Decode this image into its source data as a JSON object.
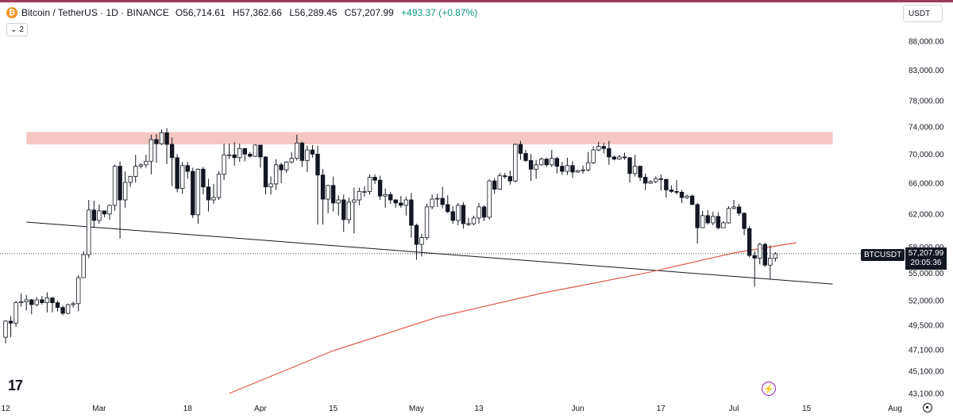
{
  "header": {
    "symbol_title": "Bitcoin / TetherUS · 1D · BINANCE",
    "open_label": "O",
    "open": "56,714.61",
    "high_label": "H",
    "high": "57,362.66",
    "low_label": "L",
    "low": "56,289.45",
    "close_label": "C",
    "close": "57,207.99",
    "change": "+493.37 (+0.87%)",
    "collapse_count": "2"
  },
  "currency_selector": "USDT",
  "price_tag": {
    "symbol": "BTCUSDT",
    "price": "57,207.99",
    "countdown": "20:05:36"
  },
  "icons": [
    "bitcoin-icon",
    "chevron-down-icon",
    "tradingview-logo-icon",
    "flash-icon",
    "settings-icon"
  ],
  "colors": {
    "up": "#089981",
    "down": "#131722",
    "candle_up_body": "#ffffff",
    "resistance_zone": "#f4c7c3",
    "moving_average": "#e05a4f",
    "trendline": "#131722",
    "accent": "#9c27b0"
  },
  "chart_data": {
    "type": "candlestick",
    "y_axis_labels": [
      "88,000.00",
      "83,000.00",
      "78,000.00",
      "74,000.00",
      "70,000.00",
      "66,000.00",
      "62,000.00",
      "58,000.00",
      "55,000.00",
      "52,000.00",
      "49,500.00",
      "47,100.00",
      "45,100.00",
      "43,100.00"
    ],
    "x_axis_labels": [
      "12",
      "Mar",
      "18",
      "Apr",
      "15",
      "May",
      "13",
      "Jun",
      "17",
      "Jul",
      "15",
      "Aug"
    ],
    "scale": "log",
    "ylim": [
      42800,
      90000
    ],
    "xlim": [
      "2024-02-11",
      "2024-08-02"
    ],
    "ohlc": [
      [
        "2024-02-12",
        48300,
        50000,
        47700,
        49900
      ],
      [
        "2024-02-13",
        49900,
        50400,
        48300,
        49700
      ],
      [
        "2024-02-14",
        49700,
        52000,
        49300,
        51800
      ],
      [
        "2024-02-15",
        51800,
        52800,
        51400,
        51900
      ],
      [
        "2024-02-16",
        51900,
        52600,
        51000,
        52100
      ],
      [
        "2024-02-17",
        52100,
        52200,
        50600,
        51600
      ],
      [
        "2024-02-18",
        51600,
        52400,
        51400,
        52100
      ],
      [
        "2024-02-19",
        52100,
        52500,
        51600,
        51800
      ],
      [
        "2024-02-20",
        51800,
        52900,
        50800,
        52300
      ],
      [
        "2024-02-21",
        52300,
        52400,
        50800,
        51800
      ],
      [
        "2024-02-22",
        51800,
        52000,
        50900,
        51300
      ],
      [
        "2024-02-23",
        51300,
        51500,
        50500,
        50700
      ],
      [
        "2024-02-24",
        50700,
        51700,
        50600,
        51600
      ],
      [
        "2024-02-25",
        51600,
        51900,
        51300,
        51700
      ],
      [
        "2024-02-26",
        51700,
        54800,
        50900,
        54500
      ],
      [
        "2024-02-27",
        54500,
        57500,
        54500,
        57100
      ],
      [
        "2024-02-28",
        57100,
        63800,
        56700,
        62500
      ],
      [
        "2024-02-29",
        62500,
        63700,
        60400,
        61200
      ],
      [
        "2024-03-01",
        61200,
        63200,
        60800,
        62400
      ],
      [
        "2024-03-02",
        62400,
        62400,
        61600,
        62000
      ],
      [
        "2024-03-03",
        62000,
        63200,
        61300,
        63100
      ],
      [
        "2024-03-04",
        63100,
        68500,
        62400,
        68300
      ],
      [
        "2024-03-05",
        68300,
        69000,
        59000,
        63800
      ],
      [
        "2024-03-06",
        63800,
        67600,
        62800,
        66100
      ],
      [
        "2024-03-07",
        66100,
        67000,
        65500,
        66900
      ],
      [
        "2024-03-08",
        66900,
        69900,
        66100,
        68300
      ],
      [
        "2024-03-09",
        68300,
        68700,
        68000,
        68500
      ],
      [
        "2024-03-10",
        68500,
        69900,
        68100,
        69000
      ],
      [
        "2024-03-11",
        69000,
        72800,
        67200,
        72100
      ],
      [
        "2024-03-12",
        72100,
        72900,
        68800,
        71500
      ],
      [
        "2024-03-13",
        71500,
        73600,
        71300,
        73100
      ],
      [
        "2024-03-14",
        73100,
        73800,
        68600,
        71400
      ],
      [
        "2024-03-15",
        71400,
        72400,
        65600,
        69500
      ],
      [
        "2024-03-16",
        69500,
        70000,
        64800,
        65300
      ],
      [
        "2024-03-17",
        65300,
        68900,
        64600,
        68400
      ],
      [
        "2024-03-18",
        68400,
        68900,
        66600,
        67600
      ],
      [
        "2024-03-19",
        67600,
        68100,
        61500,
        61900
      ],
      [
        "2024-03-20",
        61900,
        68000,
        60800,
        67900
      ],
      [
        "2024-03-21",
        67900,
        68200,
        64500,
        65500
      ],
      [
        "2024-03-22",
        65500,
        66600,
        62300,
        63800
      ],
      [
        "2024-03-23",
        63800,
        65900,
        63300,
        64100
      ],
      [
        "2024-03-24",
        64100,
        67600,
        63800,
        67200
      ],
      [
        "2024-03-25",
        67200,
        71500,
        66400,
        69900
      ],
      [
        "2024-03-26",
        69900,
        71500,
        69300,
        69900
      ],
      [
        "2024-03-27",
        69900,
        71700,
        68400,
        69500
      ],
      [
        "2024-03-28",
        69500,
        71500,
        68900,
        70800
      ],
      [
        "2024-03-29",
        70800,
        70900,
        69000,
        70000
      ],
      [
        "2024-03-30",
        70000,
        70300,
        69500,
        69700
      ],
      [
        "2024-03-31",
        69700,
        71400,
        69600,
        71300
      ],
      [
        "2024-04-01",
        71300,
        71300,
        68100,
        69600
      ],
      [
        "2024-04-02",
        69600,
        69700,
        64500,
        65500
      ],
      [
        "2024-04-03",
        65500,
        66900,
        64500,
        65900
      ],
      [
        "2024-04-04",
        65900,
        69300,
        65100,
        68500
      ],
      [
        "2024-04-05",
        68500,
        68800,
        66000,
        67800
      ],
      [
        "2024-04-06",
        67800,
        69000,
        67400,
        68900
      ],
      [
        "2024-04-07",
        68900,
        70300,
        68700,
        69400
      ],
      [
        "2024-04-08",
        69400,
        72800,
        69100,
        71600
      ],
      [
        "2024-04-09",
        71600,
        71800,
        68200,
        69100
      ],
      [
        "2024-04-10",
        69100,
        71200,
        67500,
        70600
      ],
      [
        "2024-04-11",
        70600,
        71300,
        69500,
        70000
      ],
      [
        "2024-04-12",
        70000,
        71200,
        60700,
        67100
      ],
      [
        "2024-04-13",
        67100,
        67900,
        60700,
        63900
      ],
      [
        "2024-04-14",
        63900,
        65800,
        62100,
        65700
      ],
      [
        "2024-04-15",
        65700,
        66900,
        62300,
        63400
      ],
      [
        "2024-04-16",
        63400,
        64400,
        61800,
        63800
      ],
      [
        "2024-04-17",
        63800,
        64500,
        59800,
        61300
      ],
      [
        "2024-04-18",
        61300,
        64100,
        60800,
        63500
      ],
      [
        "2024-04-19",
        63500,
        65400,
        59600,
        63800
      ],
      [
        "2024-04-20",
        63800,
        65400,
        63100,
        64900
      ],
      [
        "2024-04-21",
        64900,
        65600,
        64200,
        64900
      ],
      [
        "2024-04-22",
        64900,
        67200,
        64500,
        66800
      ],
      [
        "2024-04-23",
        66800,
        67200,
        65900,
        66400
      ],
      [
        "2024-04-24",
        66400,
        67000,
        63800,
        64300
      ],
      [
        "2024-04-25",
        64300,
        65300,
        62800,
        64500
      ],
      [
        "2024-04-26",
        64500,
        64800,
        63300,
        63800
      ],
      [
        "2024-04-27",
        63800,
        63900,
        62800,
        63400
      ],
      [
        "2024-04-28",
        63400,
        64300,
        62800,
        63100
      ],
      [
        "2024-04-29",
        63100,
        64200,
        61800,
        63800
      ],
      [
        "2024-04-30",
        63800,
        64700,
        59100,
        60600
      ],
      [
        "2024-05-01",
        60600,
        60800,
        56500,
        58300
      ],
      [
        "2024-05-02",
        58300,
        59600,
        56900,
        59100
      ],
      [
        "2024-05-03",
        59100,
        63300,
        58800,
        62900
      ],
      [
        "2024-05-04",
        62900,
        64500,
        62600,
        63900
      ],
      [
        "2024-05-05",
        63900,
        64600,
        62900,
        64000
      ],
      [
        "2024-05-06",
        64000,
        65500,
        62700,
        63200
      ],
      [
        "2024-05-07",
        63200,
        64400,
        62100,
        62300
      ],
      [
        "2024-05-08",
        62300,
        63000,
        60800,
        61200
      ],
      [
        "2024-05-09",
        61200,
        63400,
        60600,
        63100
      ],
      [
        "2024-05-10",
        63100,
        63500,
        60200,
        60800
      ],
      [
        "2024-05-11",
        60800,
        61500,
        60500,
        60800
      ],
      [
        "2024-05-12",
        60800,
        61800,
        60600,
        61500
      ],
      [
        "2024-05-13",
        61500,
        63400,
        60800,
        62900
      ],
      [
        "2024-05-14",
        62900,
        63100,
        61100,
        61600
      ],
      [
        "2024-05-15",
        61600,
        66500,
        61300,
        66300
      ],
      [
        "2024-05-16",
        66300,
        66700,
        64600,
        65200
      ],
      [
        "2024-05-17",
        65200,
        67400,
        65100,
        67000
      ],
      [
        "2024-05-18",
        67000,
        67400,
        66600,
        66900
      ],
      [
        "2024-05-19",
        66900,
        67700,
        65800,
        66300
      ],
      [
        "2024-05-20",
        66300,
        71500,
        66100,
        71400
      ],
      [
        "2024-05-21",
        71400,
        71900,
        69200,
        70100
      ],
      [
        "2024-05-22",
        70100,
        70600,
        68900,
        69100
      ],
      [
        "2024-05-23",
        69100,
        70000,
        66300,
        67900
      ],
      [
        "2024-05-24",
        67900,
        69200,
        66600,
        68500
      ],
      [
        "2024-05-25",
        68500,
        69500,
        68400,
        69300
      ],
      [
        "2024-05-26",
        69300,
        69500,
        68200,
        68500
      ],
      [
        "2024-05-27",
        68500,
        70600,
        68200,
        69400
      ],
      [
        "2024-05-28",
        69400,
        69600,
        67300,
        68300
      ],
      [
        "2024-05-29",
        68300,
        68900,
        67100,
        67600
      ],
      [
        "2024-05-30",
        67600,
        69500,
        67100,
        68400
      ],
      [
        "2024-05-31",
        68400,
        69000,
        66700,
        67500
      ],
      [
        "2024-06-01",
        67500,
        67800,
        67400,
        67700
      ],
      [
        "2024-06-02",
        67700,
        68400,
        67300,
        67800
      ],
      [
        "2024-06-03",
        67800,
        70300,
        67600,
        68800
      ],
      [
        "2024-06-04",
        68800,
        71100,
        68600,
        70600
      ],
      [
        "2024-06-05",
        70600,
        71800,
        70400,
        71100
      ],
      [
        "2024-06-06",
        71100,
        71600,
        70100,
        70800
      ],
      [
        "2024-06-07",
        70800,
        71900,
        68500,
        69600
      ],
      [
        "2024-06-08",
        69600,
        69800,
        69100,
        69300
      ],
      [
        "2024-06-09",
        69300,
        69900,
        69200,
        69600
      ],
      [
        "2024-06-10",
        69600,
        70200,
        69200,
        69500
      ],
      [
        "2024-06-11",
        69500,
        69600,
        66100,
        67300
      ],
      [
        "2024-06-12",
        67300,
        69900,
        66900,
        68300
      ],
      [
        "2024-06-13",
        68300,
        68400,
        66300,
        66800
      ],
      [
        "2024-06-14",
        66800,
        67300,
        65100,
        66000
      ],
      [
        "2024-06-15",
        66000,
        66400,
        65900,
        66200
      ],
      [
        "2024-06-16",
        66200,
        66900,
        66000,
        66600
      ],
      [
        "2024-06-17",
        66600,
        67200,
        65000,
        66500
      ],
      [
        "2024-06-18",
        66500,
        66600,
        64100,
        65100
      ],
      [
        "2024-06-19",
        65100,
        65700,
        64700,
        64900
      ],
      [
        "2024-06-20",
        64900,
        66400,
        64500,
        64800
      ],
      [
        "2024-06-21",
        64800,
        65100,
        63400,
        64100
      ],
      [
        "2024-06-22",
        64100,
        64500,
        63900,
        64300
      ],
      [
        "2024-06-23",
        64300,
        64500,
        63200,
        63200
      ],
      [
        "2024-06-24",
        63200,
        63400,
        58400,
        60300
      ],
      [
        "2024-06-25",
        60300,
        62400,
        60300,
        61800
      ],
      [
        "2024-06-26",
        61800,
        62500,
        60700,
        60900
      ],
      [
        "2024-06-27",
        60900,
        62300,
        60600,
        61700
      ],
      [
        "2024-06-28",
        61700,
        62200,
        60100,
        60300
      ],
      [
        "2024-06-29",
        60300,
        61100,
        60300,
        60900
      ],
      [
        "2024-06-30",
        60900,
        63000,
        60800,
        62700
      ],
      [
        "2024-07-01",
        62700,
        63800,
        62600,
        62900
      ],
      [
        "2024-07-02",
        62900,
        63300,
        61800,
        62100
      ],
      [
        "2024-07-03",
        62100,
        62200,
        59400,
        60200
      ],
      [
        "2024-07-04",
        60200,
        60500,
        56800,
        57000
      ],
      [
        "2024-07-05",
        57000,
        57500,
        53500,
        56700
      ],
      [
        "2024-07-06",
        56700,
        58500,
        56000,
        58300
      ],
      [
        "2024-07-07",
        58300,
        58500,
        55700,
        55900
      ],
      [
        "2024-07-08",
        55900,
        58200,
        54300,
        56700
      ],
      [
        "2024-07-09",
        56700,
        57400,
        56300,
        57200
      ]
    ],
    "moving_average": [
      [
        "2024-03-26",
        43100
      ],
      [
        "2024-04-15",
        47000
      ],
      [
        "2024-05-05",
        50300
      ],
      [
        "2024-05-25",
        52800
      ],
      [
        "2024-06-14",
        55000
      ],
      [
        "2024-07-01",
        57300
      ],
      [
        "2024-07-13",
        58500
      ]
    ],
    "trendline": [
      [
        "2024-02-16",
        61000
      ],
      [
        "2024-07-20",
        53800
      ]
    ],
    "resistance_zone": {
      "from": "2024-02-16",
      "to": "2024-07-20",
      "low": 71400,
      "high": 73200
    },
    "last_price": 57207.99
  }
}
